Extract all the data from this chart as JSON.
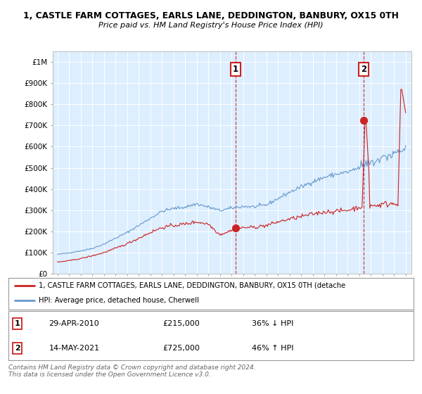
{
  "title": "1, CASTLE FARM COTTAGES, EARLS LANE, DEDDINGTON, BANBURY, OX15 0TH",
  "subtitle": "Price paid vs. HM Land Registry's House Price Index (HPI)",
  "plot_bg_color": "#ddeeff",
  "hpi_color": "#6699cc",
  "price_color": "#cc2222",
  "ylim": [
    0,
    1050000
  ],
  "yticks": [
    0,
    100000,
    200000,
    300000,
    400000,
    500000,
    600000,
    700000,
    800000,
    900000,
    1000000
  ],
  "ytick_labels": [
    "£0",
    "£100K",
    "£200K",
    "£300K",
    "£400K",
    "£500K",
    "£600K",
    "£700K",
    "£800K",
    "£900K",
    "£1M"
  ],
  "xlim_start": 1994.6,
  "xlim_end": 2025.5,
  "transaction1_x": 2010.33,
  "transaction1_y": 215000,
  "transaction2_x": 2021.37,
  "transaction2_y": 725000,
  "legend_line1": "1, CASTLE FARM COTTAGES, EARLS LANE, DEDDINGTON, BANBURY, OX15 0TH (detache",
  "legend_line2": "HPI: Average price, detached house, Cherwell",
  "annotation1_num": "1",
  "annotation1_date": "29-APR-2010",
  "annotation1_price": "£215,000",
  "annotation1_hpi": "36% ↓ HPI",
  "annotation2_num": "2",
  "annotation2_date": "14-MAY-2021",
  "annotation2_price": "£725,000",
  "annotation2_hpi": "46% ↑ HPI",
  "footer": "Contains HM Land Registry data © Crown copyright and database right 2024.\nThis data is licensed under the Open Government Licence v3.0."
}
